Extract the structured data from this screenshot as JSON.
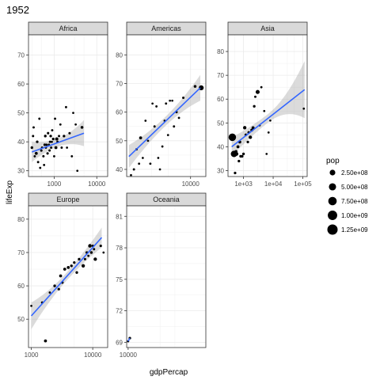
{
  "chart_data": {
    "type": "scatter",
    "title": "1952",
    "xlabel": "gdpPercap",
    "ylabel": "lifeExp",
    "size_legend": {
      "title": "pop",
      "entries": [
        {
          "label": "2.50e+08",
          "value": 250000000
        },
        {
          "label": "5.00e+08",
          "value": 500000000
        },
        {
          "label": "7.50e+08",
          "value": 750000000
        },
        {
          "label": "1.00e+09",
          "value": 1000000000
        },
        {
          "label": "1.25e+09",
          "value": 1250000000
        }
      ]
    },
    "grid": true,
    "x_scale": "log10",
    "panels": [
      {
        "name": "Africa",
        "xlim": [
          250,
          18000
        ],
        "ylim": [
          28,
          77
        ],
        "x_ticks": [
          1000,
          10000
        ],
        "x_tick_labels": [
          "1000",
          "10000"
        ],
        "y_ticks": [
          30,
          40,
          50,
          60,
          70
        ],
        "y_tick_labels": [
          "30",
          "40",
          "50",
          "60",
          "70"
        ],
        "trend": [
          [
            300,
            36.5
          ],
          [
            5000,
            43
          ]
        ],
        "ribbon_halfwidth_ends": [
          3.5,
          4.5
        ],
        "ribbon_halfwidth_mid": 1.4,
        "points": [
          [
            300,
            38,
            10000000
          ],
          [
            320,
            42,
            3000000
          ],
          [
            330,
            45,
            3000000
          ],
          [
            350,
            35,
            2000000
          ],
          [
            380,
            36,
            20000000
          ],
          [
            400,
            40,
            8000000
          ],
          [
            420,
            33,
            3000000
          ],
          [
            450,
            48,
            2000000
          ],
          [
            470,
            31,
            2000000
          ],
          [
            500,
            37,
            5000000
          ],
          [
            520,
            38,
            3000000
          ],
          [
            560,
            35,
            4000000
          ],
          [
            580,
            32,
            2000000
          ],
          [
            600,
            39,
            6000000
          ],
          [
            620,
            42,
            10000000
          ],
          [
            640,
            38,
            2000000
          ],
          [
            660,
            39,
            4000000
          ],
          [
            700,
            36,
            6000000
          ],
          [
            720,
            43,
            5000000
          ],
          [
            750,
            39,
            2000000
          ],
          [
            780,
            37,
            3000000
          ],
          [
            800,
            40,
            4000000
          ],
          [
            830,
            42,
            8000000
          ],
          [
            850,
            38,
            3000000
          ],
          [
            880,
            40,
            2000000
          ],
          [
            900,
            44,
            3000000
          ],
          [
            950,
            41,
            10000000
          ],
          [
            1000,
            35,
            2000000
          ],
          [
            1050,
            48,
            2000000
          ],
          [
            1100,
            38,
            20000000
          ],
          [
            1150,
            41,
            30000000
          ],
          [
            1200,
            40,
            4000000
          ],
          [
            1300,
            42,
            3000000
          ],
          [
            1400,
            46,
            2000000
          ],
          [
            1500,
            38,
            3000000
          ],
          [
            1700,
            42,
            8000000
          ],
          [
            1900,
            52,
            2000000
          ],
          [
            2000,
            38,
            1000000
          ],
          [
            2300,
            43,
            4000000
          ],
          [
            2600,
            35,
            2000000
          ],
          [
            2800,
            50,
            1000000
          ],
          [
            3200,
            46,
            1000000
          ],
          [
            3500,
            30,
            1000000
          ],
          [
            4500,
            45,
            14000000
          ]
        ]
      },
      {
        "name": "Americas",
        "xlim": [
          1400,
          16000
        ],
        "ylim": [
          37.5,
          87
        ],
        "x_ticks": [
          10000
        ],
        "x_tick_labels": [
          "10000"
        ],
        "y_ticks": [
          40,
          50,
          60,
          70,
          80
        ],
        "y_tick_labels": [
          "40",
          "50",
          "60",
          "70",
          "80"
        ],
        "trend": [
          [
            1500,
            44.5
          ],
          [
            13500,
            68.5
          ]
        ],
        "ribbon_halfwidth_ends": [
          4,
          4.5
        ],
        "ribbon_halfwidth_mid": 1.6,
        "points": [
          [
            1600,
            38,
            1000000
          ],
          [
            1750,
            40,
            3000000
          ],
          [
            1900,
            47,
            3000000
          ],
          [
            2050,
            42,
            2000000
          ],
          [
            2150,
            51,
            20000000
          ],
          [
            2300,
            44,
            1000000
          ],
          [
            2500,
            57,
            1000000
          ],
          [
            2700,
            50,
            1000000
          ],
          [
            2900,
            42,
            2000000
          ],
          [
            3100,
            63,
            1000000
          ],
          [
            3300,
            55,
            3000000
          ],
          [
            3500,
            62,
            2000000
          ],
          [
            3700,
            44,
            1000000
          ],
          [
            3900,
            40,
            1000000
          ],
          [
            4200,
            48,
            2000000
          ],
          [
            4500,
            57,
            1000000
          ],
          [
            4700,
            63,
            2000000
          ],
          [
            5000,
            52,
            1000000
          ],
          [
            5300,
            64,
            1000000
          ],
          [
            5700,
            64,
            1000000
          ],
          [
            6000,
            55,
            2000000
          ],
          [
            6500,
            60,
            3000000
          ],
          [
            7000,
            58,
            2000000
          ],
          [
            8000,
            65,
            4000000
          ],
          [
            11500,
            69,
            14000000
          ],
          [
            13900,
            68.5,
            160000000
          ]
        ]
      },
      {
        "name": "Asia",
        "xlim": [
          300,
          140000
        ],
        "ylim": [
          27.5,
          87
        ],
        "x_ticks": [
          1000,
          10000,
          100000
        ],
        "x_tick_labels": [
          "1e+03",
          "1e+04",
          "1e+05"
        ],
        "y_ticks": [
          30,
          40,
          50,
          60,
          70,
          80
        ],
        "y_tick_labels": [
          "30",
          "40",
          "50",
          "60",
          "70",
          "80"
        ],
        "trend": [
          [
            400,
            40
          ],
          [
            115000,
            64
          ]
        ],
        "ribbon_halfwidth_ends": [
          4,
          12
        ],
        "ribbon_halfwidth_mid": 1.8,
        "points": [
          [
            420,
            44,
            550000000
          ],
          [
            480,
            37,
            370000000
          ],
          [
            520,
            29,
            8000000
          ],
          [
            560,
            38,
            20000000
          ],
          [
            580,
            37,
            60000000
          ],
          [
            650,
            40,
            20000000
          ],
          [
            700,
            34,
            8000000
          ],
          [
            750,
            42,
            20000000
          ],
          [
            800,
            36,
            10000000
          ],
          [
            900,
            36,
            10000000
          ],
          [
            1000,
            37,
            10000000
          ],
          [
            1100,
            48,
            40000000
          ],
          [
            1200,
            45,
            10000000
          ],
          [
            1400,
            42,
            8000000
          ],
          [
            1500,
            46,
            10000000
          ],
          [
            1700,
            44,
            40000000
          ],
          [
            1900,
            47,
            20000000
          ],
          [
            2100,
            48,
            20000000
          ],
          [
            2300,
            57,
            10000000
          ],
          [
            2500,
            61,
            3000000
          ],
          [
            3000,
            63,
            80000000
          ],
          [
            3500,
            49,
            1000000
          ],
          [
            4000,
            65,
            2000000
          ],
          [
            5000,
            55,
            1000000
          ],
          [
            6000,
            37,
            1000000
          ],
          [
            7000,
            46,
            1000000
          ],
          [
            8000,
            51,
            1000000
          ],
          [
            108000,
            56,
            1000000
          ]
        ]
      },
      {
        "name": "Europe",
        "xlim": [
          900,
          17500
        ],
        "ylim": [
          41.5,
          84
        ],
        "x_ticks": [
          1000,
          10000
        ],
        "x_tick_labels": [
          "1000",
          "10000"
        ],
        "y_ticks": [
          50,
          60,
          70,
          80
        ],
        "y_tick_labels": [
          "50",
          "60",
          "70",
          "80"
        ],
        "trend": [
          [
            1000,
            51
          ],
          [
            14000,
            74.5
          ]
        ],
        "ribbon_halfwidth_ends": [
          4,
          3
        ],
        "ribbon_halfwidth_mid": 1.2,
        "points": [
          [
            1000,
            54,
            1000000
          ],
          [
            1500,
            55,
            3000000
          ],
          [
            1700,
            43.5,
            20000000
          ],
          [
            2000,
            58,
            2000000
          ],
          [
            2400,
            60,
            10000000
          ],
          [
            2800,
            59,
            8000000
          ],
          [
            3000,
            63,
            20000000
          ],
          [
            3200,
            61,
            8000000
          ],
          [
            3500,
            65,
            20000000
          ],
          [
            4000,
            65.5,
            20000000
          ],
          [
            4500,
            66,
            10000000
          ],
          [
            5000,
            67,
            8000000
          ],
          [
            5500,
            64,
            10000000
          ],
          [
            6000,
            68,
            10000000
          ],
          [
            7000,
            66,
            40000000
          ],
          [
            7500,
            68,
            4000000
          ],
          [
            8000,
            70,
            8000000
          ],
          [
            8500,
            69,
            2000000
          ],
          [
            9000,
            72,
            50000000
          ],
          [
            9500,
            70,
            10000000
          ],
          [
            10000,
            72,
            4000000
          ],
          [
            10500,
            71,
            3000000
          ],
          [
            11000,
            68,
            40000000
          ],
          [
            13500,
            72,
            7000000
          ],
          [
            15000,
            70,
            1000000
          ]
        ]
      },
      {
        "name": "Oceania",
        "xlim": [
          9500,
          145000
        ],
        "ylim": [
          68.5,
          82
        ],
        "x_ticks": [
          10000
        ],
        "x_tick_labels": [
          "10000"
        ],
        "y_ticks": [
          69,
          72,
          75,
          78,
          81
        ],
        "y_tick_labels": [
          "69",
          "72",
          "75",
          "78",
          "81"
        ],
        "trend": [
          [
            10000,
            69.1
          ],
          [
            10600,
            69.4
          ]
        ],
        "ribbon_halfwidth_ends": [
          0.05,
          0.05
        ],
        "ribbon_halfwidth_mid": 0.03,
        "points": [
          [
            10000,
            69.1,
            2000000
          ],
          [
            10600,
            69.4,
            8000000
          ]
        ]
      }
    ]
  }
}
